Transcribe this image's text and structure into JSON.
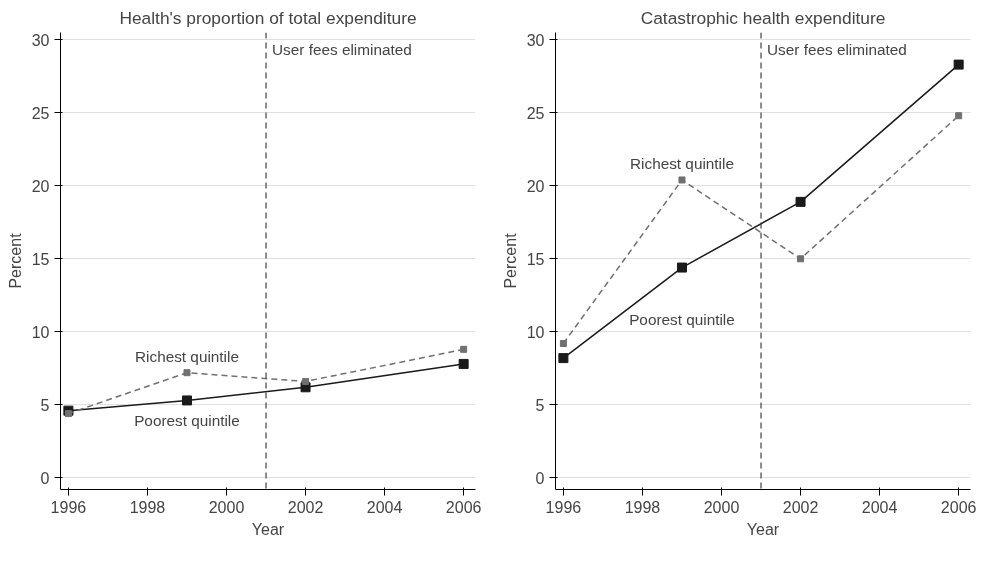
{
  "chart_data": [
    {
      "type": "line",
      "title": "Health's proportion of total expenditure",
      "xlabel": "Year",
      "ylabel": "Percent",
      "x": [
        1996,
        1999,
        2002,
        2006
      ],
      "xlim": [
        1995.8,
        2006.3
      ],
      "xticks": [
        1996,
        1998,
        2000,
        2002,
        2004,
        2006
      ],
      "ylim": [
        -0.8,
        30.5
      ],
      "yticks": [
        0,
        5,
        10,
        15,
        20,
        25,
        30
      ],
      "grid": "y",
      "marker": "square",
      "legend": false,
      "series": [
        {
          "name": "Poorest quintile",
          "color": "#1a1a1a",
          "line_style": "solid",
          "values": [
            4.6,
            5.3,
            6.2,
            7.8
          ]
        },
        {
          "name": "Richest quintile",
          "color": "#707070",
          "line_style": "dashed",
          "values": [
            4.4,
            7.2,
            6.6,
            8.8
          ]
        }
      ],
      "ref_lines": [
        {
          "axis": "x",
          "value": 2001,
          "label": "User fees eliminated",
          "color": "#404040",
          "line_style": "dashed"
        }
      ]
    },
    {
      "type": "line",
      "title": "Catastrophic health expenditure",
      "xlabel": "Year",
      "ylabel": "Percent",
      "x": [
        1996,
        1999,
        2002,
        2006
      ],
      "xlim": [
        1995.8,
        2006.3
      ],
      "xticks": [
        1996,
        1998,
        2000,
        2002,
        2004,
        2006
      ],
      "ylim": [
        -0.8,
        30.5
      ],
      "yticks": [
        0,
        5,
        10,
        15,
        20,
        25,
        30
      ],
      "grid": "y",
      "marker": "square",
      "legend": false,
      "series": [
        {
          "name": "Poorest quintile",
          "color": "#1a1a1a",
          "line_style": "solid",
          "values": [
            8.2,
            14.4,
            18.9,
            28.3
          ]
        },
        {
          "name": "Richest quintile",
          "color": "#707070",
          "line_style": "dashed",
          "values": [
            9.2,
            20.4,
            15.0,
            24.8
          ]
        }
      ],
      "ref_lines": [
        {
          "axis": "x",
          "value": 2001,
          "label": "User fees eliminated",
          "color": "#404040",
          "line_style": "dashed"
        }
      ]
    }
  ]
}
